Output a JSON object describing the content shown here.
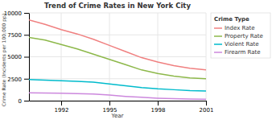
{
  "chart_data": {
    "type": "line",
    "title": "Trend of Crime Rates in New York City",
    "xlabel": "Year",
    "ylabel": "Crime Rate (Incidents per 100,000 pp)",
    "x": [
      1990,
      1991,
      1992,
      1993,
      1994,
      1995,
      1996,
      1997,
      1998,
      1999,
      2000,
      2001
    ],
    "series": [
      {
        "name": "Index Rate",
        "color": "#F08080",
        "values": [
          9200,
          8700,
          8100,
          7600,
          7000,
          6300,
          5600,
          4900,
          4400,
          4000,
          3700,
          3500
        ]
      },
      {
        "name": "Property Rate",
        "color": "#8DB84A",
        "values": [
          7200,
          6900,
          6400,
          5900,
          5300,
          4700,
          4100,
          3500,
          3100,
          2800,
          2600,
          2500
        ]
      },
      {
        "name": "Violent Rate",
        "color": "#00BBCC",
        "values": [
          2400,
          2350,
          2280,
          2200,
          2100,
          1900,
          1700,
          1500,
          1350,
          1250,
          1150,
          1100
        ]
      },
      {
        "name": "Firearm Rate",
        "color": "#CC88DD",
        "values": [
          900,
          880,
          850,
          810,
          760,
          640,
          490,
          380,
          280,
          220,
          190,
          170
        ]
      }
    ],
    "xlim": [
      1990,
      2001
    ],
    "xticks": [
      1992,
      1995,
      1998,
      2001
    ],
    "ylim": [
      0,
      10000
    ],
    "yticks": [
      0,
      2500,
      5000,
      7500,
      10000
    ],
    "grid": true,
    "legend": "right",
    "legend_title": "Crime Type"
  }
}
